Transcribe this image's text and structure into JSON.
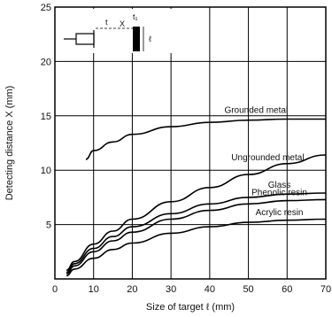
{
  "chart_data": {
    "type": "line",
    "xlabel": "Size of target ℓ (mm)",
    "ylabel": "Detecting distance X (mm)",
    "xlim": [
      0,
      70
    ],
    "ylim": [
      0,
      25
    ],
    "xticks": [
      0,
      10,
      20,
      30,
      40,
      50,
      60,
      70
    ],
    "yticks": [
      5,
      10,
      15,
      20,
      25
    ],
    "grid": true,
    "series": [
      {
        "name": "Grounded metal",
        "color": "#000000",
        "x": [
          8,
          10,
          15,
          20,
          30,
          40,
          50,
          60,
          70
        ],
        "y": [
          11.0,
          11.8,
          12.6,
          13.3,
          14.0,
          14.4,
          14.6,
          14.7,
          14.7
        ]
      },
      {
        "name": "Ungrounded metal",
        "color": "#000000",
        "x": [
          3,
          5,
          10,
          15,
          20,
          30,
          40,
          50,
          60,
          70
        ],
        "y": [
          0.8,
          1.6,
          3.2,
          4.4,
          5.5,
          7.1,
          8.4,
          9.6,
          10.6,
          11.4
        ]
      },
      {
        "name": "Glass",
        "color": "#000000",
        "x": [
          3,
          5,
          10,
          15,
          20,
          30,
          40,
          50,
          60,
          70
        ],
        "y": [
          0.6,
          1.4,
          2.8,
          3.9,
          4.8,
          6.0,
          6.9,
          7.5,
          7.8,
          7.9
        ]
      },
      {
        "name": "Phenolic resin",
        "color": "#000000",
        "x": [
          3,
          5,
          10,
          15,
          20,
          30,
          40,
          50,
          60,
          70
        ],
        "y": [
          0.5,
          1.2,
          2.5,
          3.5,
          4.3,
          5.5,
          6.3,
          6.9,
          7.2,
          7.3
        ]
      },
      {
        "name": "Acrylic resin",
        "color": "#000000",
        "x": [
          3,
          5,
          10,
          15,
          20,
          30,
          40,
          50,
          60,
          70
        ],
        "y": [
          0.3,
          0.9,
          1.9,
          2.7,
          3.3,
          4.2,
          4.8,
          5.2,
          5.4,
          5.5
        ]
      }
    ],
    "inset": {
      "labels": [
        "t",
        "X",
        "t₁",
        "ℓ"
      ]
    }
  }
}
